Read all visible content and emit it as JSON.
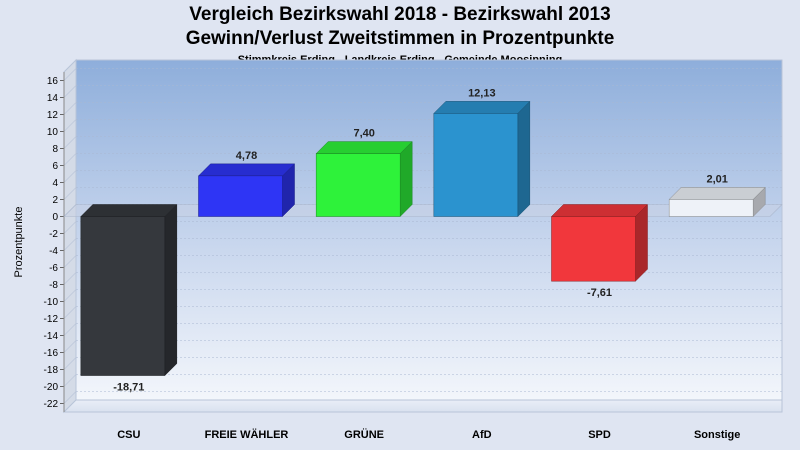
{
  "chart_data": {
    "type": "bar",
    "title": "Vergleich Bezirkswahl 2018 - Bezirkswahl 2013",
    "title2": "Gewinn/Verlust Zweitstimmen in Prozentpunkte",
    "subtitle": "Stimmkreis Erding - Landkreis Erding - Gemeinde Moosinning",
    "ylabel": "Prozentpunkte",
    "xlabel": "",
    "ylim": [
      -23,
      17
    ],
    "yticks": [
      16,
      14,
      12,
      10,
      8,
      6,
      4,
      2,
      0,
      -2,
      -4,
      -6,
      -8,
      -10,
      -12,
      -14,
      -16,
      -18,
      -20,
      -22
    ],
    "grid": true,
    "categories": [
      "CSU",
      "FREIE WÄHLER",
      "GRÜNE",
      "AfD",
      "SPD",
      "Sonstige"
    ],
    "values": [
      -18.71,
      4.78,
      7.4,
      12.13,
      -7.61,
      2.01
    ],
    "value_labels": [
      "-18,71",
      "4,78",
      "7,40",
      "12,13",
      "-7,61",
      "2,01"
    ],
    "colors": [
      "#35383d",
      "#2e35f5",
      "#2ef23a",
      "#2b93cf",
      "#f1373c",
      "#eef2f8"
    ]
  }
}
